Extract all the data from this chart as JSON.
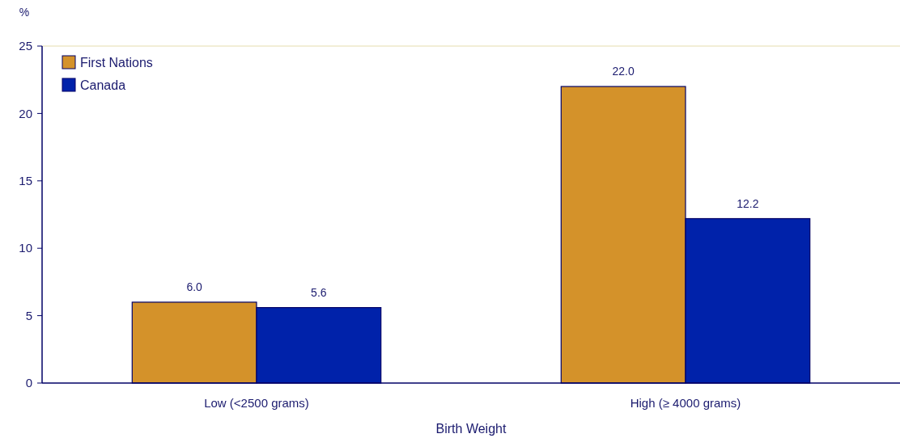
{
  "chart_data": {
    "type": "bar",
    "ylabel": "%",
    "xlabel": "Birth Weight",
    "categories": [
      "Low (<2500 grams)",
      "High (≥ 4000 grams)"
    ],
    "series": [
      {
        "name": "First Nations",
        "color": "#d4922a",
        "values": [
          6.0,
          22.0
        ],
        "value_labels": [
          "6.0",
          "22.0"
        ]
      },
      {
        "name": "Canada",
        "color": "#0022aa",
        "values": [
          5.6,
          12.2
        ],
        "value_labels": [
          "5.6",
          "12.2"
        ]
      }
    ],
    "ylim": [
      0,
      25
    ],
    "yticks": [
      0,
      5,
      10,
      15,
      20,
      25
    ],
    "legend": "top left",
    "grid": false
  }
}
